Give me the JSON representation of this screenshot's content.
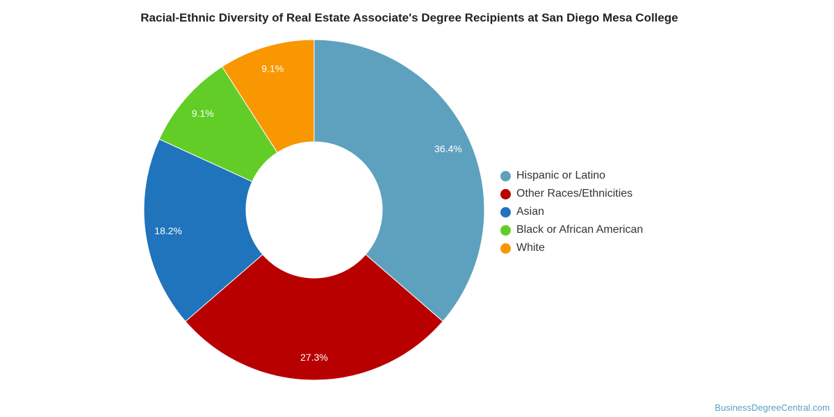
{
  "chart_data": {
    "type": "pie",
    "variant": "donut",
    "title": "Racial-Ethnic Diversity of Real Estate Associate's Degree Recipients at San Diego Mesa College",
    "slices": [
      {
        "name": "Hispanic or Latino",
        "value": 36.4,
        "label": "36.4%",
        "color": "#5ea1bf"
      },
      {
        "name": "Other Races/Ethnicities",
        "value": 27.3,
        "label": "27.3%",
        "color": "#b80000"
      },
      {
        "name": "Asian",
        "value": 18.2,
        "label": "18.2%",
        "color": "#1f74bb"
      },
      {
        "name": "Black or African American",
        "value": 9.1,
        "label": "9.1%",
        "color": "#62cd26"
      },
      {
        "name": "White",
        "value": 9.1,
        "label": "9.1%",
        "color": "#f99700"
      }
    ],
    "legend_position": "right"
  },
  "credit": "BusinessDegreeCentral.com"
}
